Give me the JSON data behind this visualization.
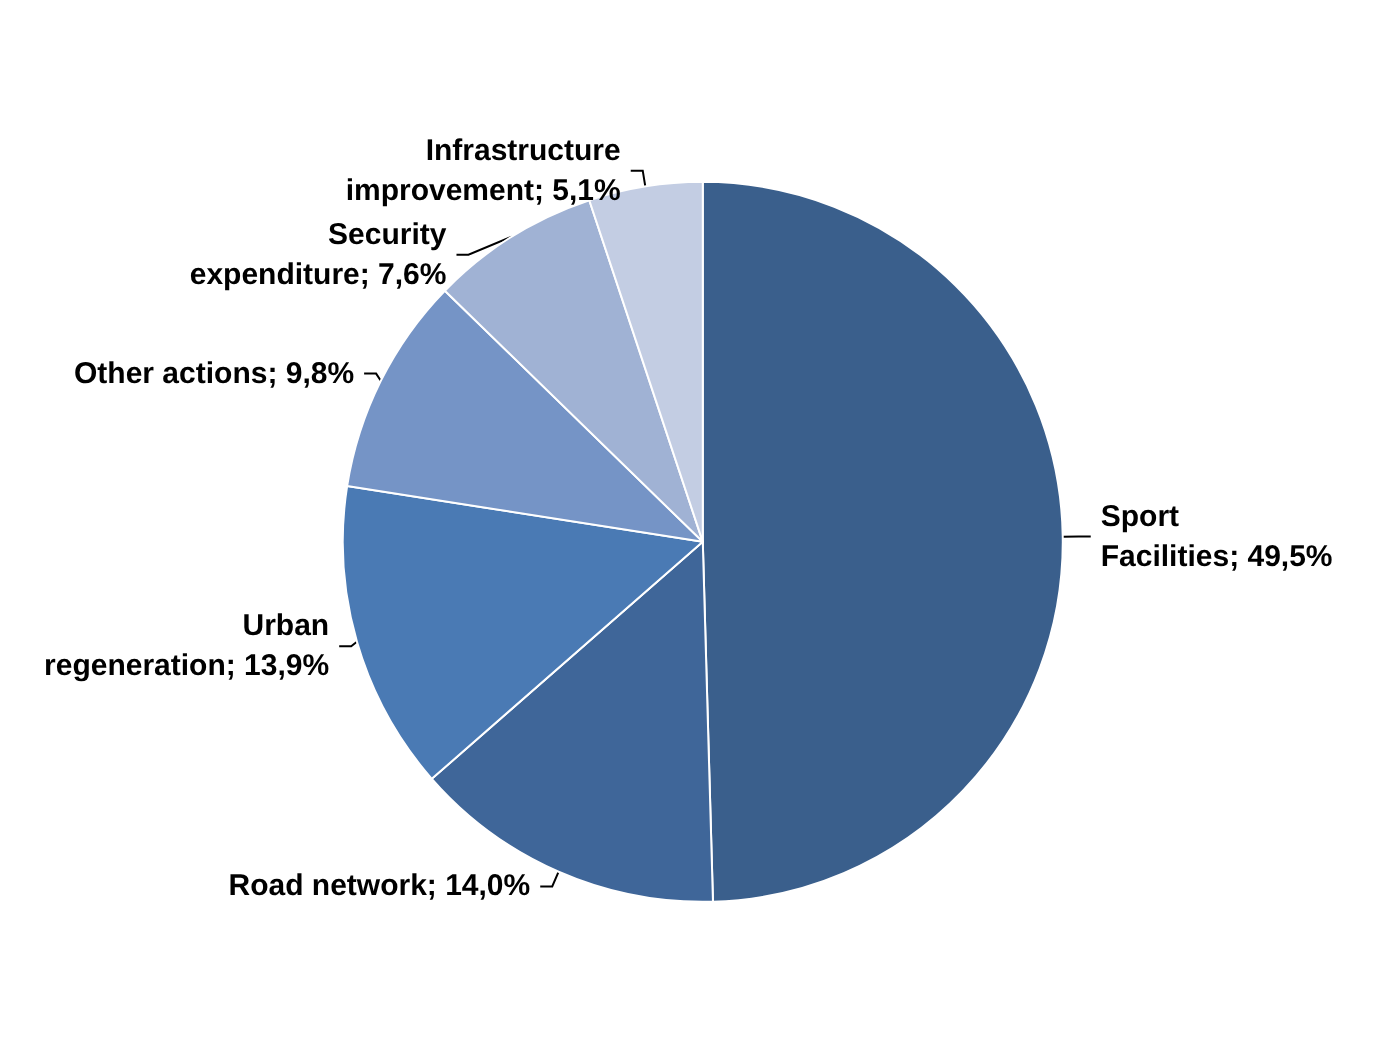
{
  "chart_data": {
    "type": "pie",
    "categories": [
      "Sport Facilities",
      "Road network",
      "Urban regeneration",
      "Other actions",
      "Security expenditure",
      "Infrastructure improvement"
    ],
    "values": [
      49.5,
      14.0,
      13.9,
      9.8,
      7.6,
      5.1
    ],
    "value_labels": [
      "49,5%",
      "14,0%",
      "13,9%",
      "9,8%",
      "7,6%",
      "5,1%"
    ],
    "colors": [
      "#3a5f8c",
      "#3f6699",
      "#4a7ab4",
      "#7594c6",
      "#a0b2d4",
      "#c3cde3"
    ],
    "legend": false
  }
}
